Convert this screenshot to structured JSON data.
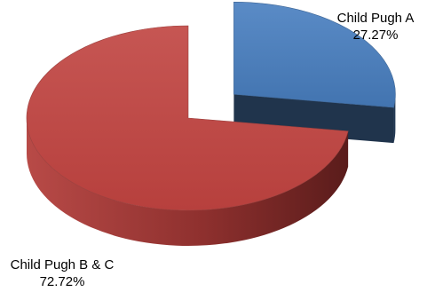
{
  "chart_data": {
    "type": "pie",
    "style": "3d-exploded",
    "title": "",
    "slices": [
      {
        "name": "Child Pugh A",
        "value": 27.27,
        "value_label": "27.27%",
        "color": "#4f81bd",
        "exploded": true
      },
      {
        "name": "Child Pugh B & C",
        "value": 72.72,
        "value_label": "72.72%",
        "color": "#c0504d",
        "exploded": false
      }
    ]
  }
}
